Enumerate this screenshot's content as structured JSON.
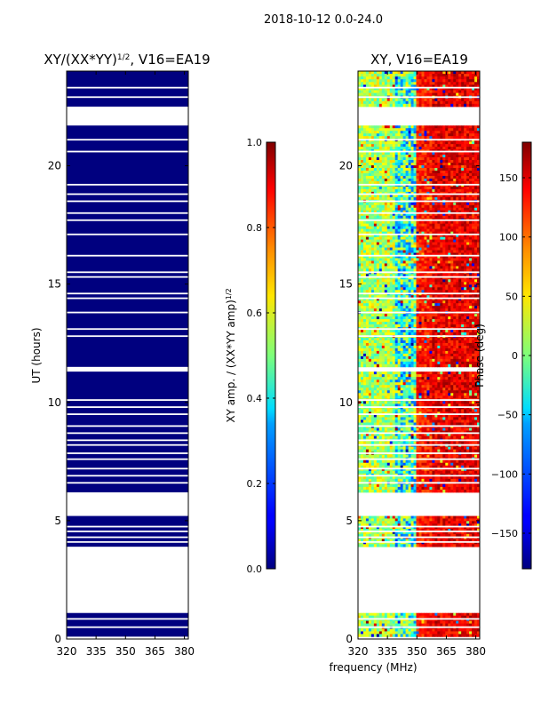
{
  "suptitle": "2018-10-12 0.0-24.0",
  "xlabel": "frequency (MHz)",
  "ylabel": "UT (hours)",
  "chart_data": [
    {
      "type": "heatmap",
      "title_main": "XY/(XX*YY)",
      "title_sup": "1/2",
      "title_rest": ", V16=EA19",
      "x_ticks": [
        320,
        335,
        350,
        365,
        380
      ],
      "xlim": [
        320,
        382
      ],
      "y_ticks": [
        0,
        5,
        10,
        15,
        20
      ],
      "ylim": [
        0,
        24
      ],
      "data_rows": [
        [
          0.1,
          1.1
        ],
        [
          3.9,
          5.2
        ],
        [
          6.2,
          11.3
        ],
        [
          11.5,
          21.7
        ],
        [
          22.5,
          24
        ]
      ],
      "flag_lines": [
        0.5,
        0.85,
        4.1,
        4.3,
        4.55,
        4.75,
        6.6,
        6.9,
        7.2,
        7.6,
        7.85,
        8.2,
        8.4,
        8.7,
        9.0,
        9.5,
        9.8,
        10.1,
        12.8,
        13.1,
        13.8,
        14.4,
        14.6,
        15.3,
        15.5,
        16.2,
        17.1,
        17.7,
        18.0,
        18.5,
        18.8,
        19.2,
        20.6,
        21.1,
        22.9,
        23.3
      ],
      "colorbar": {
        "label_main": "XY amp. / (XX*YY amp)",
        "label_sup": "1/2",
        "ticks": [
          0.0,
          0.2,
          0.4,
          0.6,
          0.8,
          1.0
        ],
        "tick_labels": [
          "0.0",
          "0.2",
          "0.4",
          "0.6",
          "0.8",
          "1.0"
        ],
        "range": [
          0,
          1
        ],
        "colormap": "jet"
      }
    },
    {
      "type": "heatmap",
      "title": "XY, V16=EA19",
      "x_ticks": [
        320,
        335,
        350,
        365,
        380
      ],
      "xlim": [
        320,
        382
      ],
      "y_ticks": [
        0,
        5,
        10,
        15,
        20
      ],
      "ylim": [
        0,
        24
      ],
      "data_rows": [
        [
          0.1,
          1.1
        ],
        [
          3.9,
          5.2
        ],
        [
          6.2,
          11.3
        ],
        [
          11.5,
          21.7
        ],
        [
          22.5,
          24
        ]
      ],
      "flag_lines": [
        0.5,
        0.85,
        4.1,
        4.3,
        4.55,
        4.75,
        6.6,
        6.9,
        7.2,
        7.6,
        7.85,
        8.2,
        8.4,
        8.7,
        9.0,
        9.5,
        9.8,
        10.1,
        12.8,
        13.1,
        13.8,
        14.4,
        14.6,
        15.3,
        15.5,
        16.2,
        17.1,
        17.7,
        18.0,
        18.5,
        18.8,
        19.2,
        20.6,
        21.1,
        22.9,
        23.3
      ],
      "colorbar": {
        "label": "Phase (deg)",
        "ticks": [
          -150,
          -100,
          -50,
          0,
          50,
          100,
          150
        ],
        "tick_labels": [
          "−150",
          "−100",
          "−50",
          "0",
          "50",
          "100",
          "150"
        ],
        "range": [
          -180,
          180
        ],
        "colormap": "jet"
      }
    }
  ]
}
